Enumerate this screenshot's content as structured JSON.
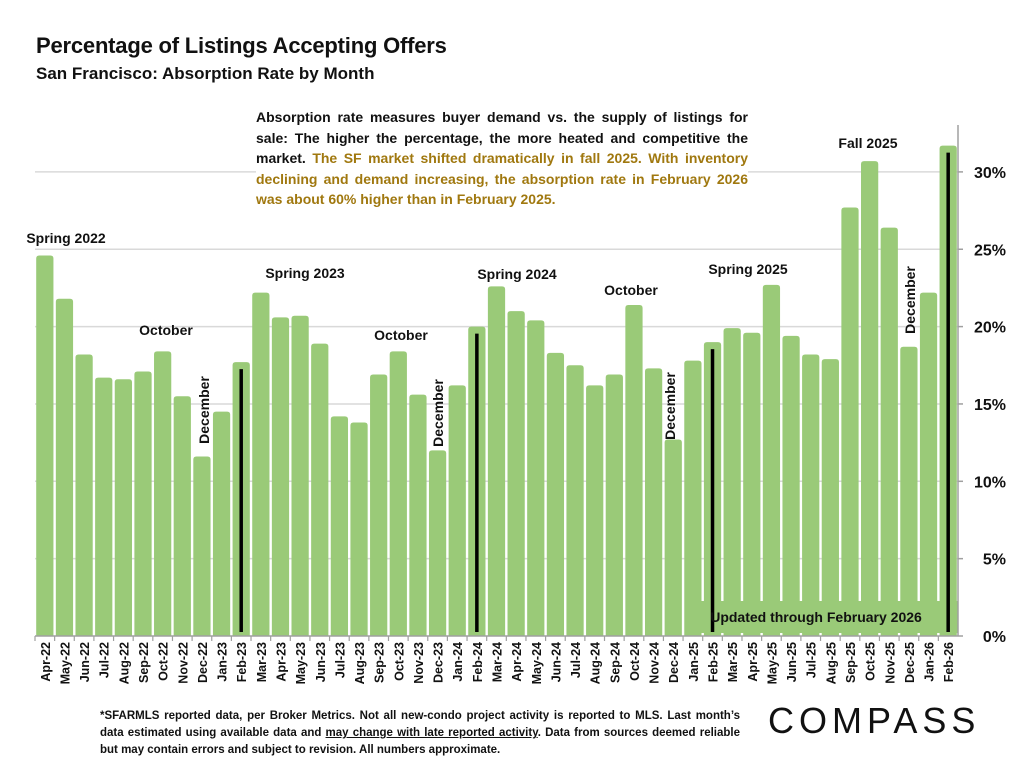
{
  "header": {
    "title": "Percentage of Listings Accepting Offers",
    "subtitle": "San Francisco:  Absorption Rate by Month"
  },
  "note": {
    "black": "Absorption rate measures buyer demand vs. the supply of listings for sale: The higher the percentage, the more heated and competitive the market.",
    "gold": "The SF market shifted dramatically in fall 2025. With inventory declining and demand increasing, the absorption rate in February 2026 was about 60% higher than in February 2025."
  },
  "footer": {
    "part1": "*SFARMLS reported data, per Broker Metrics. Not all new-condo project activity is reported to MLS. Last month’s data estimated using available data and ",
    "underlined": "may change with late reported activity",
    "part2": ". Data from sources deemed reliable but may contain errors and subject to revision. All numbers approximate."
  },
  "logo": "COMPASS",
  "updated_label": "Updated through February 2026",
  "colors": {
    "bar": "#9aca78",
    "gold": "#a0780f",
    "grid": "#d9d9d9"
  },
  "chart_data": {
    "type": "bar",
    "title": "Percentage of Listings Accepting Offers",
    "subtitle": "San Francisco:  Absorption Rate by Month",
    "xlabel": "",
    "ylabel": "",
    "ylim": [
      0,
      32
    ],
    "yticks": [
      "0%",
      "5%",
      "10%",
      "15%",
      "20%",
      "25%",
      "30%"
    ],
    "ytick_values": [
      0,
      5,
      10,
      15,
      20,
      25,
      30
    ],
    "y_axis_side": "right",
    "grid": true,
    "categories": [
      "Apr-22",
      "May-22",
      "Jun-22",
      "Jul-22",
      "Aug-22",
      "Sep-22",
      "Oct-22",
      "Nov-22",
      "Dec-22",
      "Jan-23",
      "Feb-23",
      "Mar-23",
      "Apr-23",
      "May-23",
      "Jun-23",
      "Jul-23",
      "Aug-23",
      "Sep-23",
      "Oct-23",
      "Nov-23",
      "Dec-23",
      "Jan-24",
      "Feb-24",
      "Mar-24",
      "Apr-24",
      "May-24",
      "Jun-24",
      "Jul-24",
      "Aug-24",
      "Sep-24",
      "Oct-24",
      "Nov-24",
      "Dec-24",
      "Jan-25",
      "Feb-25",
      "Mar-25",
      "Apr-25",
      "May-25",
      "Jun-25",
      "Jul-25",
      "Aug-25",
      "Sep-25",
      "Oct-25",
      "Nov-25",
      "Dec-25",
      "Jan-26",
      "Feb-26"
    ],
    "values": [
      24.6,
      21.8,
      18.2,
      16.7,
      16.6,
      17.1,
      18.4,
      15.5,
      11.6,
      14.5,
      17.7,
      22.2,
      20.6,
      20.7,
      18.9,
      14.2,
      13.8,
      16.9,
      18.4,
      15.6,
      12.0,
      16.2,
      20.0,
      22.6,
      21.0,
      20.4,
      18.3,
      17.5,
      16.2,
      16.9,
      21.4,
      17.3,
      12.7,
      17.8,
      19.0,
      19.9,
      19.6,
      22.7,
      19.4,
      18.2,
      17.9,
      27.7,
      30.7,
      26.4,
      18.7,
      22.2,
      31.7
    ],
    "highlighted_months": [
      "Feb-23",
      "Feb-24",
      "Feb-25",
      "Feb-26"
    ],
    "annotations": [
      {
        "text": "Spring 2022",
        "at": "Apr-22"
      },
      {
        "text": "October",
        "at": "Oct-22"
      },
      {
        "text": "December",
        "at": "Dec-22"
      },
      {
        "text": "Spring 2023",
        "at": "Apr-23"
      },
      {
        "text": "October",
        "at": "Oct-23"
      },
      {
        "text": "December",
        "at": "Dec-23"
      },
      {
        "text": "Spring 2024",
        "at": "Mar-24"
      },
      {
        "text": "October",
        "at": "Oct-24"
      },
      {
        "text": "December",
        "at": "Dec-24"
      },
      {
        "text": "Spring 2025",
        "at": "Apr-25"
      },
      {
        "text": "Fall 2025",
        "at": "Oct-25"
      },
      {
        "text": "December",
        "at": "Dec-25"
      }
    ]
  }
}
